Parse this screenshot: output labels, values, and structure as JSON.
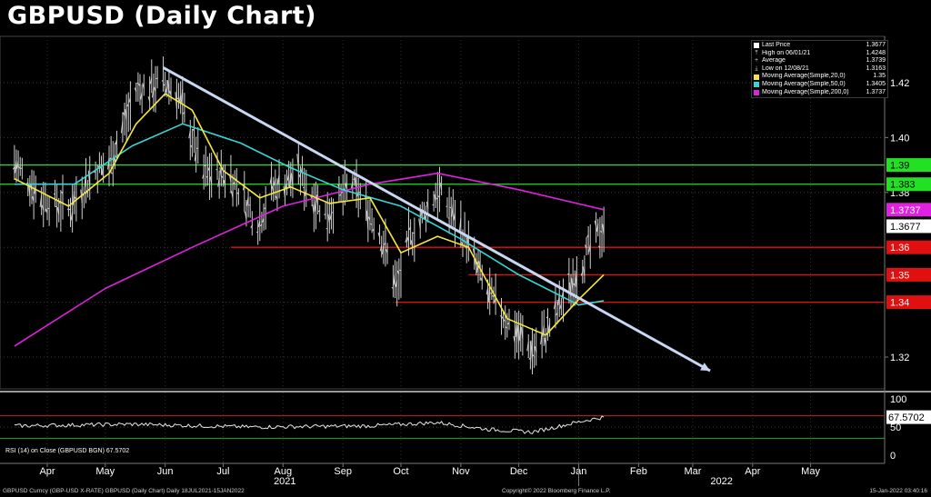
{
  "title": "GBPUSD (Daily Chart)",
  "legend": [
    {
      "glyph": "square",
      "color": "#ffffff",
      "label": "Last Price",
      "value": "1.3677"
    },
    {
      "glyph": "up",
      "color": "#cccccc",
      "label": "High on 06/01/21",
      "value": "1.4248"
    },
    {
      "glyph": "plus",
      "color": "#cccccc",
      "label": "Average",
      "value": "1.3739"
    },
    {
      "glyph": "down",
      "color": "#cccccc",
      "label": "Low on 12/08/21",
      "value": "1.3163"
    },
    {
      "glyph": "square",
      "color": "#f5e83c",
      "label": "Moving Average(Simple,20,0)",
      "value": "1.35"
    },
    {
      "glyph": "square",
      "color": "#36d6d6",
      "label": "Moving Average(Simple,50,0)",
      "value": "1.3405"
    },
    {
      "glyph": "square",
      "color": "#e021e0",
      "label": "Moving Average(Simple,200,0)",
      "value": "1.3737"
    }
  ],
  "price_tags": [
    {
      "text": "1.39",
      "value": 1.39,
      "bg": "#22e022",
      "fg": "#000000"
    },
    {
      "text": "1.383",
      "value": 1.383,
      "bg": "#22e022",
      "fg": "#000000"
    },
    {
      "text": "1.3737",
      "value": 1.3737,
      "bg": "#e021e0",
      "fg": "#ffffff"
    },
    {
      "text": "1.3677",
      "value": 1.3677,
      "bg": "#ffffff",
      "fg": "#000000"
    },
    {
      "text": "1.36",
      "value": 1.36,
      "bg": "#e01010",
      "fg": "#ffffff"
    },
    {
      "text": "1.35",
      "value": 1.35,
      "bg": "#e01010",
      "fg": "#ffffff"
    },
    {
      "text": "1.34",
      "value": 1.34,
      "bg": "#e01010",
      "fg": "#ffffff"
    }
  ],
  "rsi": {
    "label": "RSI (14)  on Close (GBPUSD BGN) 67.5702",
    "tag": "67.5702",
    "ticks": [
      "100",
      "50",
      "0"
    ]
  },
  "footer": {
    "left": "GBPUSD Curncy (GBP-USD X-RATE) GBPUSD (Daily Chart)  Daily 18JUL2021-15JAN2022",
    "center": "Copyright© 2022 Bloomberg Finance L.P.",
    "right": "15-Jan-2022 03:40:16"
  },
  "chart_data": {
    "type": "line",
    "title": "GBPUSD (Daily Chart)",
    "x_months": [
      "Apr",
      "May",
      "Jun",
      "Jul",
      "Aug",
      "Sep",
      "Oct",
      "Nov",
      "Dec",
      "Jan",
      "Feb",
      "Mar",
      "Apr",
      "May"
    ],
    "x_years": [
      "2021",
      "2022"
    ],
    "y_ticks": [
      "1.42",
      "1.40",
      "1.38",
      "1.32"
    ],
    "ylim": [
      1.31,
      1.4324
    ],
    "series": [
      {
        "name": "Last Price",
        "color": "#ffffff",
        "points": [
          [
            "2021-03-15",
            1.391
          ],
          [
            "2021-03-29",
            1.378
          ],
          [
            "2021-04-12",
            1.374
          ],
          [
            "2021-04-26",
            1.388
          ],
          [
            "2021-05-03",
            1.39
          ],
          [
            "2021-05-17",
            1.417
          ],
          [
            "2021-05-31",
            1.42
          ],
          [
            "2021-06-07",
            1.417
          ],
          [
            "2021-06-21",
            1.387
          ],
          [
            "2021-07-05",
            1.386
          ],
          [
            "2021-07-19",
            1.369
          ],
          [
            "2021-07-26",
            1.381
          ],
          [
            "2021-08-09",
            1.387
          ],
          [
            "2021-08-23",
            1.372
          ],
          [
            "2021-09-06",
            1.383
          ],
          [
            "2021-09-20",
            1.366
          ],
          [
            "2021-09-29",
            1.345
          ],
          [
            "2021-10-05",
            1.362
          ],
          [
            "2021-10-20",
            1.381
          ],
          [
            "2021-11-01",
            1.367
          ],
          [
            "2021-11-15",
            1.343
          ],
          [
            "2021-11-29",
            1.33
          ],
          [
            "2021-12-08",
            1.322
          ],
          [
            "2021-12-16",
            1.33
          ],
          [
            "2021-12-27",
            1.345
          ],
          [
            "2022-01-07",
            1.36
          ],
          [
            "2022-01-14",
            1.3677
          ]
        ]
      },
      {
        "name": "Moving Average(Simple,20,0)",
        "color": "#f5e83c",
        "points": [
          [
            "2021-03-15",
            1.385
          ],
          [
            "2021-04-12",
            1.375
          ],
          [
            "2021-05-03",
            1.387
          ],
          [
            "2021-05-17",
            1.405
          ],
          [
            "2021-06-01",
            1.416
          ],
          [
            "2021-06-15",
            1.41
          ],
          [
            "2021-07-01",
            1.388
          ],
          [
            "2021-07-20",
            1.378
          ],
          [
            "2021-08-05",
            1.382
          ],
          [
            "2021-08-25",
            1.376
          ],
          [
            "2021-09-15",
            1.378
          ],
          [
            "2021-10-01",
            1.358
          ],
          [
            "2021-10-20",
            1.364
          ],
          [
            "2021-11-05",
            1.36
          ],
          [
            "2021-11-25",
            1.334
          ],
          [
            "2021-12-15",
            1.328
          ],
          [
            "2022-01-01",
            1.341
          ],
          [
            "2022-01-14",
            1.35
          ]
        ]
      },
      {
        "name": "Moving Average(Simple,50,0)",
        "color": "#36d6d6",
        "points": [
          [
            "2021-03-15",
            1.383
          ],
          [
            "2021-04-15",
            1.383
          ],
          [
            "2021-05-15",
            1.397
          ],
          [
            "2021-06-10",
            1.405
          ],
          [
            "2021-07-10",
            1.398
          ],
          [
            "2021-08-05",
            1.389
          ],
          [
            "2021-09-01",
            1.381
          ],
          [
            "2021-10-01",
            1.375
          ],
          [
            "2021-11-01",
            1.363
          ],
          [
            "2021-12-01",
            1.35
          ],
          [
            "2022-01-01",
            1.339
          ],
          [
            "2022-01-14",
            1.3405
          ]
        ]
      },
      {
        "name": "Moving Average(Simple,200,0)",
        "color": "#e021e0",
        "points": [
          [
            "2021-03-15",
            1.324
          ],
          [
            "2021-05-01",
            1.345
          ],
          [
            "2021-06-15",
            1.36
          ],
          [
            "2021-08-01",
            1.375
          ],
          [
            "2021-09-15",
            1.383
          ],
          [
            "2021-10-20",
            1.387
          ],
          [
            "2021-12-01",
            1.381
          ],
          [
            "2022-01-14",
            1.3737
          ]
        ]
      }
    ],
    "trendline": {
      "start": [
        "2021-05-31",
        1.4255
      ],
      "end": [
        "2022-03-10",
        1.315
      ]
    },
    "horizontal_lines": [
      {
        "value": 1.39,
        "color": "#22e022"
      },
      {
        "value": 1.383,
        "color": "#22e022"
      },
      {
        "value": 1.36,
        "color": "#e01010",
        "start": "2021-07-05"
      },
      {
        "value": 1.35,
        "color": "#e01010",
        "start": "2021-11-05"
      },
      {
        "value": 1.34,
        "color": "#e01010",
        "start": "2021-09-28"
      }
    ],
    "rsi": {
      "name": "RSI (14)",
      "last": 67.5702,
      "points": [
        [
          "2021-03-15",
          52
        ],
        [
          "2021-05-15",
          55
        ],
        [
          "2021-07-15",
          50
        ],
        [
          "2021-09-15",
          52
        ],
        [
          "2021-10-20",
          58
        ],
        [
          "2021-11-15",
          46
        ],
        [
          "2021-12-08",
          41
        ],
        [
          "2021-12-20",
          50
        ],
        [
          "2022-01-05",
          62
        ],
        [
          "2022-01-14",
          67.57
        ]
      ]
    },
    "legend_position": "top-right"
  }
}
